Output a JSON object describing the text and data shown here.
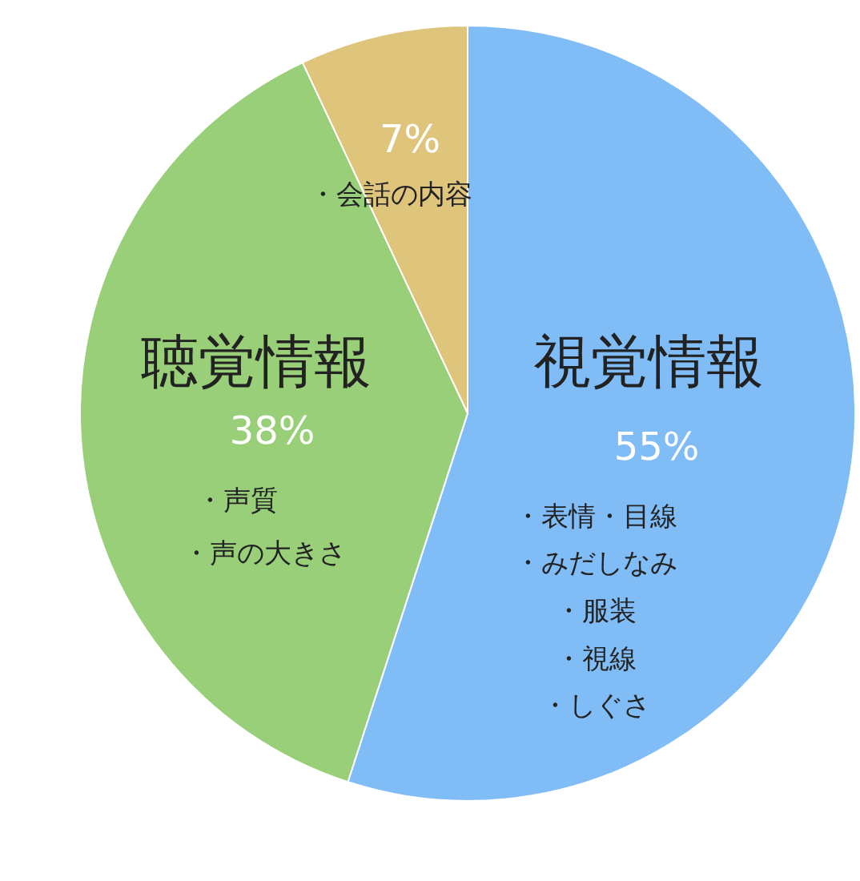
{
  "chart_data": {
    "type": "pie",
    "categories": [
      "視覚情報",
      "聴覚情報",
      null
    ],
    "values": [
      55,
      38,
      7
    ],
    "colors": [
      "#80bdf6",
      "#98cf78",
      "#dfc47c"
    ],
    "value_labels": [
      "55%",
      "38%",
      "7%"
    ],
    "annotations": [
      "・表情・目線",
      "・みだしなみ",
      "・服装",
      "・視線",
      "・しぐさ",
      "・声質",
      "・声の大きさ",
      "・会話の内容"
    ]
  }
}
